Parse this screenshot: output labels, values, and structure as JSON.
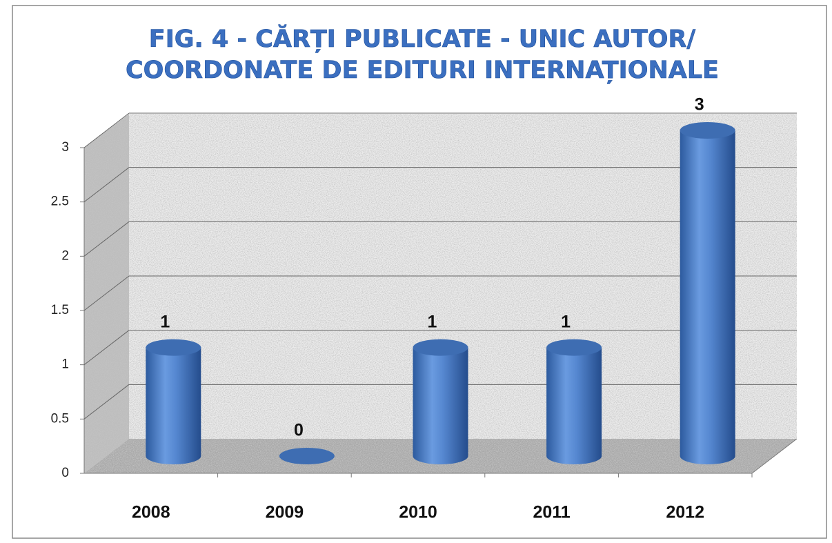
{
  "chart_data": {
    "type": "bar3d-cylinder",
    "title": [
      "FIG. 4 - CĂRȚI PUBLICATE - UNIC AUTOR/",
      "COORDONATE DE EDITURI INTERNAȚIONALE"
    ],
    "categories": [
      "2008",
      "2009",
      "2010",
      "2011",
      "2012"
    ],
    "values": [
      1,
      0,
      1,
      1,
      3
    ],
    "color": "#4a7cc4",
    "ylim": [
      0,
      3
    ],
    "yticks": [
      0,
      0.5,
      1,
      1.5,
      2,
      2.5,
      3
    ],
    "grid": true
  }
}
